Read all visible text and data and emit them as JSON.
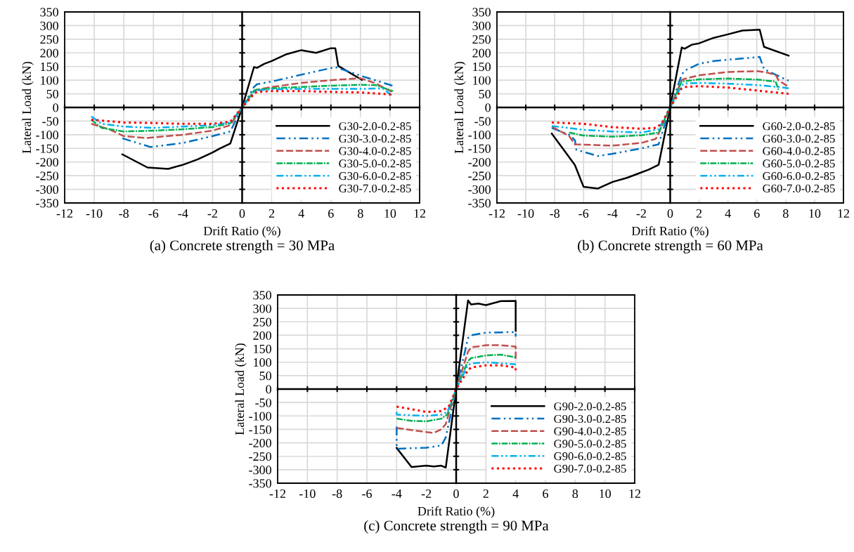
{
  "chart_data": [
    {
      "type": "line",
      "xlabel": "Drift Ratio (%)",
      "ylabel": "Lateral Load (kN)",
      "annotations": [
        "(a) Concrete strength = 30 MPa"
      ],
      "xlim": [
        -12,
        12
      ],
      "xticks": [
        -12,
        -10,
        -8,
        -6,
        -4,
        -2,
        0,
        2,
        4,
        6,
        8,
        10,
        12
      ],
      "ylim": [
        -350,
        350
      ],
      "yticks": [
        -350,
        -300,
        -250,
        -200,
        -150,
        -100,
        -50,
        0,
        50,
        100,
        150,
        200,
        250,
        300,
        350
      ],
      "grid": true,
      "legend": "bottom right",
      "series": [
        {
          "name": "G30-2.0-0.2-85",
          "color": "#000000",
          "line_style": "solid",
          "x": [
            -8.1,
            -6.4,
            -5,
            -4,
            -3,
            -2,
            -1.5,
            -0.8,
            0,
            0.8,
            1,
            1.5,
            2,
            3,
            4,
            5,
            6,
            6.3,
            6.5,
            8.1
          ],
          "values": [
            -172,
            -220,
            -225,
            -210,
            -190,
            -165,
            -150,
            -132,
            0,
            148,
            145,
            160,
            170,
            195,
            210,
            200,
            217,
            217,
            152,
            101
          ]
        },
        {
          "name": "G30-3.0-0.2-85",
          "color": "#0070c0",
          "line_style": "dashed",
          "x": [
            -8.1,
            -6.2,
            -4,
            -2,
            -0.8,
            0,
            0.8,
            1,
            2,
            4,
            6.3,
            8.2,
            10.2
          ],
          "values": [
            -113,
            -145,
            -130,
            -105,
            -88,
            0,
            75,
            85,
            95,
            120,
            148,
            113,
            79
          ]
        },
        {
          "name": "G30-4.0-0.2-85",
          "color": "#c0504d",
          "line_style": "dashed",
          "x": [
            -10.2,
            -9,
            -8,
            -6.5,
            -4,
            -2,
            -0.8,
            0,
            0.8,
            1,
            2,
            4,
            6,
            8,
            9,
            10.2
          ],
          "values": [
            -60,
            -80,
            -105,
            -112,
            -100,
            -85,
            -65,
            0,
            60,
            65,
            75,
            90,
            100,
            107,
            89,
            55
          ]
        },
        {
          "name": "G30-5.0-0.2-85",
          "color": "#00b050",
          "line_style": "dashed",
          "x": [
            -10.2,
            -9.5,
            -8,
            -6,
            -4,
            -2,
            -0.8,
            0,
            0.8,
            1,
            2,
            4,
            6,
            8,
            9,
            10.2
          ],
          "values": [
            -45,
            -75,
            -88,
            -85,
            -80,
            -72,
            -58,
            0,
            62,
            65,
            70,
            75,
            80,
            83,
            82,
            60
          ]
        },
        {
          "name": "G30-6.0-0.2-85",
          "color": "#00b0f0",
          "line_style": "dashed",
          "x": [
            -10.2,
            -9.5,
            -8,
            -6,
            -4,
            -2,
            -0.8,
            0,
            0.8,
            1,
            2,
            4,
            6,
            8,
            9.5,
            10.2
          ],
          "values": [
            -33,
            -60,
            -70,
            -75,
            -70,
            -65,
            -55,
            0,
            55,
            62,
            66,
            68,
            68,
            68,
            70,
            40
          ]
        },
        {
          "name": "G30-7.0-0.2-85",
          "color": "#ff0000",
          "line_style": "dotted",
          "x": [
            -10.2,
            -8,
            -6,
            -4,
            -2,
            -0.8,
            0,
            0.8,
            1,
            2,
            4,
            6,
            8,
            10.2
          ],
          "values": [
            -45,
            -55,
            -57,
            -60,
            -60,
            -52,
            0,
            50,
            57,
            60,
            60,
            57,
            55,
            47
          ]
        }
      ]
    },
    {
      "type": "line",
      "xlabel": "Drift Ratio (%)",
      "ylabel": "Lateral Load (kN)",
      "annotations": [
        "(b) Concrete strength = 60 MPa"
      ],
      "xlim": [
        -12,
        12
      ],
      "xticks": [
        -12,
        -10,
        -8,
        -6,
        -4,
        -2,
        0,
        2,
        4,
        6,
        8,
        10,
        12
      ],
      "ylim": [
        -350,
        350
      ],
      "yticks": [
        -350,
        -300,
        -250,
        -200,
        -150,
        -100,
        -50,
        0,
        50,
        100,
        150,
        200,
        250,
        300,
        350
      ],
      "grid": true,
      "legend": "bottom right",
      "series": [
        {
          "name": "G60-2.0-0.2-85",
          "color": "#000000",
          "line_style": "solid",
          "x": [
            -8.2,
            -6.6,
            -6,
            -5,
            -4,
            -3,
            -2,
            -1.5,
            -0.8,
            0,
            0.8,
            1,
            1.5,
            2,
            3,
            4,
            5,
            6.2,
            6.5,
            8.2
          ],
          "values": [
            -96,
            -211,
            -291,
            -297,
            -273,
            -258,
            -238,
            -228,
            -210,
            0,
            220,
            215,
            230,
            235,
            255,
            268,
            282,
            285,
            222,
            190
          ]
        },
        {
          "name": "G60-3.0-0.2-85",
          "color": "#0070c0",
          "line_style": "dashed",
          "x": [
            -8.2,
            -7,
            -6.6,
            -6.5,
            -5,
            -4,
            -2,
            -0.8,
            0,
            0.8,
            1,
            2,
            3,
            4,
            6.2,
            6.5,
            8.2
          ],
          "values": [
            -75,
            -100,
            -120,
            -155,
            -178,
            -170,
            -150,
            -135,
            0,
            120,
            135,
            160,
            170,
            175,
            185,
            140,
            98
          ]
        },
        {
          "name": "G60-4.0-0.2-85",
          "color": "#c0504d",
          "line_style": "dashed",
          "x": [
            -8.2,
            -7,
            -6.6,
            -4,
            -2,
            -1,
            -0.8,
            0,
            0.8,
            1,
            2,
            4,
            6,
            6.5,
            7.3,
            7.5,
            8.2
          ],
          "values": [
            -70,
            -105,
            -135,
            -140,
            -130,
            -115,
            -95,
            0,
            100,
            105,
            118,
            130,
            133,
            130,
            120,
            100,
            75
          ]
        },
        {
          "name": "G60-5.0-0.2-85",
          "color": "#00b050",
          "line_style": "dashed",
          "x": [
            -7,
            -6,
            -4,
            -2,
            -0.8,
            0,
            0.8,
            2,
            4,
            6,
            7.3,
            7.5
          ],
          "values": [
            -92,
            -103,
            -107,
            -102,
            -92,
            0,
            95,
            103,
            106,
            102,
            95,
            65
          ]
        },
        {
          "name": "G60-6.0-0.2-85",
          "color": "#00b0f0",
          "line_style": "dashed",
          "x": [
            -8.2,
            -6,
            -4,
            -2,
            -0.8,
            0,
            0.8,
            1,
            2,
            4,
            6,
            7.5,
            8.2
          ],
          "values": [
            -68,
            -82,
            -88,
            -92,
            -80,
            0,
            80,
            88,
            90,
            87,
            82,
            75,
            70
          ]
        },
        {
          "name": "G60-7.0-0.2-85",
          "color": "#ff0000",
          "line_style": "dotted",
          "x": [
            -8.2,
            -6,
            -4,
            -2,
            -1,
            -0.6,
            0,
            0.8,
            1,
            2,
            4,
            6,
            8.2
          ],
          "values": [
            -55,
            -60,
            -72,
            -78,
            -75,
            -60,
            0,
            70,
            75,
            78,
            73,
            62,
            50
          ]
        }
      ]
    },
    {
      "type": "line",
      "xlabel": "Drift Ratio (%)",
      "ylabel": "Lateral Load (kN)",
      "annotations": [
        "(c) Concrete strength = 90 MPa"
      ],
      "xlim": [
        -12,
        12
      ],
      "xticks": [
        -12,
        -10,
        -8,
        -6,
        -4,
        -2,
        0,
        2,
        4,
        6,
        8,
        10,
        12
      ],
      "ylim": [
        -350,
        350
      ],
      "yticks": [
        -350,
        -300,
        -250,
        -200,
        -150,
        -100,
        -50,
        0,
        50,
        100,
        150,
        200,
        250,
        300,
        350
      ],
      "grid": true,
      "legend": "bottom right",
      "series": [
        {
          "name": "G90-2.0-0.2-85",
          "color": "#000000",
          "line_style": "solid",
          "x": [
            -4,
            -3,
            -2,
            -1.5,
            -1,
            -0.7,
            0,
            0.8,
            1,
            1.5,
            2,
            3,
            4,
            4
          ],
          "values": [
            -219,
            -290,
            -285,
            -288,
            -285,
            -292,
            0,
            330,
            315,
            318,
            312,
            327,
            328,
            217
          ]
        },
        {
          "name": "G90-3.0-0.2-85",
          "color": "#0070c0",
          "line_style": "dashed",
          "x": [
            -4,
            -4,
            -3,
            -2,
            -1,
            -0.7,
            0,
            0.8,
            1,
            2,
            4,
            4
          ],
          "values": [
            -140,
            -222,
            -220,
            -218,
            -210,
            -180,
            0,
            190,
            200,
            210,
            212,
            195
          ]
        },
        {
          "name": "G90-4.0-0.2-85",
          "color": "#c0504d",
          "line_style": "dashed",
          "x": [
            -4,
            -2,
            -1.5,
            -1,
            -0.7,
            0,
            0.8,
            1,
            2,
            3,
            4,
            4
          ],
          "values": [
            -145,
            -160,
            -163,
            -150,
            -130,
            0,
            140,
            155,
            163,
            163,
            158,
            105
          ]
        },
        {
          "name": "G90-5.0-0.2-85",
          "color": "#00b050",
          "line_style": "dashed",
          "x": [
            -4,
            -3,
            -2,
            -1,
            -0.6,
            0,
            0.8,
            1,
            2,
            3,
            4
          ],
          "values": [
            -110,
            -118,
            -120,
            -110,
            -95,
            0,
            105,
            115,
            125,
            128,
            118
          ]
        },
        {
          "name": "G90-6.0-0.2-85",
          "color": "#00b0f0",
          "line_style": "dashed",
          "x": [
            -4,
            -4,
            -2,
            -1,
            -0.6,
            0,
            0.8,
            1,
            2,
            4
          ],
          "values": [
            -85,
            -95,
            -100,
            -95,
            -85,
            0,
            90,
            95,
            100,
            92
          ]
        },
        {
          "name": "G90-7.0-0.2-85",
          "color": "#ff0000",
          "line_style": "dotted",
          "x": [
            -4,
            -2,
            -1,
            -0.5,
            0,
            0.8,
            1,
            2,
            3,
            4,
            4
          ],
          "values": [
            -65,
            -85,
            -82,
            -65,
            0,
            70,
            80,
            88,
            88,
            80,
            70
          ]
        }
      ]
    }
  ]
}
